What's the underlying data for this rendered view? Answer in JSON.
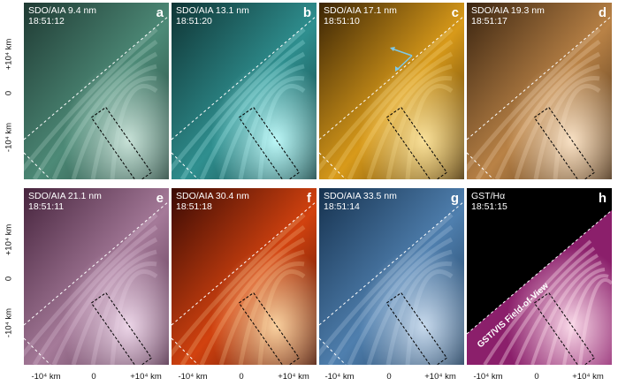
{
  "panels": [
    {
      "instrument": "SDO/AIA 9.4 nm",
      "time": "18:51:12",
      "letter": "a",
      "palette": "teal-dark",
      "colors": [
        "#1f3a33",
        "#4d8a77",
        "#cfe8de"
      ]
    },
    {
      "instrument": "SDO/AIA 13.1 nm",
      "time": "18:51:20",
      "letter": "b",
      "palette": "teal-cyan",
      "colors": [
        "#0f3434",
        "#2f8f8f",
        "#c4ffff"
      ]
    },
    {
      "instrument": "SDO/AIA 17.1 nm",
      "time": "18:51:10",
      "letter": "c",
      "palette": "gold",
      "colors": [
        "#3a2405",
        "#d89a1a",
        "#ffe7a0"
      ]
    },
    {
      "instrument": "SDO/AIA 19.3 nm",
      "time": "18:51:17",
      "letter": "d",
      "palette": "bronze",
      "colors": [
        "#3a2410",
        "#b98246",
        "#ffe8cc"
      ]
    },
    {
      "instrument": "SDO/AIA 21.1 nm",
      "time": "18:51:11",
      "letter": "e",
      "palette": "mauve",
      "colors": [
        "#46243d",
        "#a57a99",
        "#f2dcee"
      ]
    },
    {
      "instrument": "SDO/AIA 30.4 nm",
      "time": "18:51:18",
      "letter": "f",
      "palette": "red-orange",
      "colors": [
        "#3a0a04",
        "#d2420f",
        "#ffd9a6"
      ]
    },
    {
      "instrument": "SDO/AIA 33.5 nm",
      "time": "18:51:14",
      "letter": "g",
      "palette": "blue",
      "colors": [
        "#16324f",
        "#4f7fae",
        "#cfe0f2"
      ]
    },
    {
      "instrument": "GST/Hα",
      "time": "18:51:15",
      "letter": "h",
      "palette": "inferno",
      "colors": [
        "#000000",
        "#8b1f6b",
        "#ffe1ee"
      ]
    }
  ],
  "fov_label": "GST/VIS Field-of-View",
  "y_ticks": [
    "+10⁴ km",
    "0",
    "-10⁴ km"
  ],
  "x_ticks": [
    "-10⁴ km",
    "0",
    "+10⁴ km"
  ]
}
